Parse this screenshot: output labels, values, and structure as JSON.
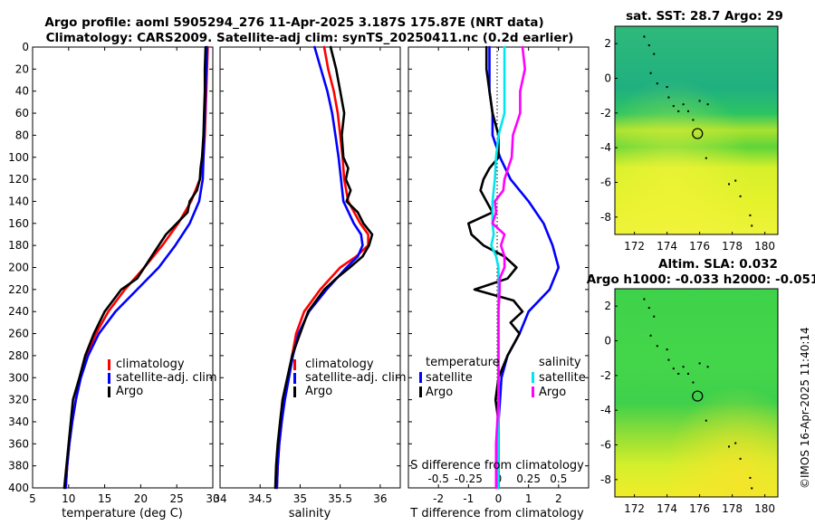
{
  "header": {
    "title_line1": "Argo profile: aoml 5905294_276 11-Apr-2025 3.187S 175.87E (NRT data)",
    "title_line2": "Climatology: CARS2009. Satellite-adj clim: synTS_20250411.nc (0.2d earlier)"
  },
  "colors": {
    "climatology": "#ff0000",
    "satellite": "#0000ff",
    "argo": "#000000",
    "satellite_s": "#00e5ee",
    "argo_s": "#ff00ff"
  },
  "chart_data": [
    {
      "id": "temperature",
      "type": "line",
      "xlabel": "temperature (deg C)",
      "ylabel": "",
      "xlim": [
        5,
        30
      ],
      "ylim": [
        400,
        0
      ],
      "xticks": [
        5,
        10,
        15,
        20,
        25,
        30
      ],
      "xtick_labels": [
        "5",
        "10",
        "15",
        "20",
        "25",
        "30"
      ],
      "yticks": [
        0,
        20,
        40,
        60,
        80,
        100,
        120,
        140,
        160,
        180,
        200,
        220,
        240,
        260,
        280,
        300,
        320,
        340,
        360,
        380,
        400
      ],
      "ytick_labels": [
        "0",
        "20",
        "40",
        "60",
        "80",
        "100",
        "120",
        "140",
        "160",
        "180",
        "200",
        "220",
        "240",
        "260",
        "280",
        "300",
        "320",
        "340",
        "360",
        "380",
        "400"
      ],
      "legend": [
        "climatology",
        "satellite-adj. clim",
        "Argo"
      ],
      "series": [
        {
          "name": "climatology",
          "color": "#ff0000",
          "depth": [
            0,
            20,
            40,
            60,
            80,
            100,
            120,
            140,
            160,
            180,
            200,
            220,
            240,
            260,
            280,
            300,
            320,
            340,
            360,
            380,
            400
          ],
          "values": [
            29.3,
            29.2,
            29.1,
            29.0,
            28.9,
            28.7,
            28.2,
            27.0,
            25.2,
            23.0,
            20.5,
            17.8,
            15.5,
            13.8,
            12.5,
            11.6,
            11.0,
            10.5,
            10.1,
            9.8,
            9.6
          ]
        },
        {
          "name": "satellite-adj. clim",
          "color": "#0000ff",
          "depth": [
            0,
            20,
            40,
            60,
            80,
            100,
            120,
            140,
            160,
            180,
            200,
            220,
            240,
            260,
            280,
            300,
            320,
            340,
            360,
            380,
            400
          ],
          "values": [
            29.2,
            29.1,
            29.0,
            28.9,
            28.8,
            28.7,
            28.6,
            28.1,
            26.8,
            24.8,
            22.5,
            19.5,
            16.5,
            14.2,
            12.7,
            11.7,
            11.0,
            10.5,
            10.1,
            9.8,
            9.6
          ]
        },
        {
          "name": "Argo",
          "color": "#000000",
          "depth": [
            0,
            20,
            40,
            60,
            80,
            100,
            110,
            120,
            130,
            140,
            150,
            160,
            170,
            180,
            190,
            200,
            210,
            220,
            240,
            260,
            280,
            300,
            320,
            340,
            360,
            380,
            400
          ],
          "values": [
            29.0,
            28.9,
            28.9,
            28.8,
            28.7,
            28.5,
            28.3,
            28.2,
            27.8,
            26.8,
            26.5,
            25.0,
            23.5,
            22.5,
            21.5,
            20.5,
            19.5,
            17.3,
            15.0,
            13.5,
            12.3,
            11.5,
            10.6,
            10.3,
            10.0,
            9.7,
            9.4
          ]
        }
      ]
    },
    {
      "id": "salinity",
      "type": "line",
      "xlabel": "salinity",
      "ylabel": "",
      "xlim": [
        34,
        36.25
      ],
      "ylim": [
        400,
        0
      ],
      "xticks": [
        34,
        34.5,
        35,
        35.5,
        36
      ],
      "xtick_labels": [
        "34",
        "34.5",
        "35",
        "35.5",
        "36"
      ],
      "legend": [
        "climatology",
        "satellite-adj. clim",
        "Argo"
      ],
      "series": [
        {
          "name": "climatology",
          "color": "#ff0000",
          "depth": [
            0,
            20,
            40,
            60,
            80,
            100,
            120,
            140,
            160,
            170,
            180,
            190,
            200,
            220,
            240,
            260,
            280,
            300,
            320,
            340,
            360,
            380,
            400
          ],
          "values": [
            35.3,
            35.35,
            35.42,
            35.47,
            35.5,
            35.53,
            35.55,
            35.6,
            35.75,
            35.85,
            35.85,
            35.7,
            35.5,
            35.25,
            35.05,
            34.95,
            34.9,
            34.85,
            34.8,
            34.77,
            34.74,
            34.72,
            34.71
          ]
        },
        {
          "name": "satellite-adj. clim",
          "color": "#0000ff",
          "depth": [
            0,
            20,
            40,
            60,
            80,
            100,
            120,
            140,
            160,
            170,
            180,
            190,
            200,
            220,
            240,
            260,
            280,
            300,
            320,
            340,
            360,
            380,
            400
          ],
          "values": [
            35.18,
            35.26,
            35.34,
            35.4,
            35.44,
            35.48,
            35.51,
            35.54,
            35.67,
            35.76,
            35.78,
            35.72,
            35.58,
            35.33,
            35.11,
            34.98,
            34.91,
            34.86,
            34.81,
            34.77,
            34.74,
            34.72,
            34.71
          ]
        },
        {
          "name": "Argo",
          "color": "#000000",
          "depth": [
            0,
            20,
            40,
            60,
            80,
            100,
            110,
            120,
            130,
            140,
            150,
            160,
            170,
            180,
            190,
            200,
            210,
            220,
            240,
            260,
            280,
            300,
            320,
            340,
            360,
            380,
            400
          ],
          "values": [
            35.38,
            35.45,
            35.5,
            35.55,
            35.52,
            35.54,
            35.6,
            35.57,
            35.63,
            35.58,
            35.72,
            35.79,
            35.9,
            35.86,
            35.78,
            35.62,
            35.45,
            35.3,
            35.1,
            35.0,
            34.9,
            34.84,
            34.78,
            34.75,
            34.72,
            34.7,
            34.69
          ]
        }
      ]
    },
    {
      "id": "difference",
      "type": "line",
      "xlabel": "T difference from climatology",
      "x2label": "S difference from climatology",
      "xlim": [
        -3,
        3
      ],
      "ylim": [
        400,
        0
      ],
      "xticks": [
        -2,
        -1,
        0,
        1,
        2
      ],
      "xtick_labels": [
        "-2",
        "-1",
        "0",
        "1",
        "2"
      ],
      "x2ticks": [
        -0.5,
        -0.25,
        0,
        0.25,
        0.5
      ],
      "x2tick_labels": [
        "-0.5",
        "-0.25",
        "0",
        "0.25",
        "0.5"
      ],
      "legend_t": [
        "temperature",
        "satellite",
        "Argo"
      ],
      "legend_s": [
        "salinity",
        "satellite",
        "Argo"
      ],
      "series": [
        {
          "name": "temperature satellite",
          "color": "#0000ff",
          "depth": [
            0,
            20,
            40,
            60,
            80,
            100,
            120,
            140,
            160,
            180,
            200,
            220,
            240,
            260,
            280,
            300,
            320,
            340,
            360,
            380,
            400
          ],
          "values": [
            -0.3,
            -0.3,
            -0.3,
            -0.2,
            -0.2,
            0.05,
            0.4,
            1.0,
            1.5,
            1.8,
            2.0,
            1.7,
            1.0,
            0.7,
            0.3,
            0.1,
            0.05,
            0.0,
            0.0,
            0.0,
            0.0
          ]
        },
        {
          "name": "temperature Argo",
          "color": "#000000",
          "depth": [
            0,
            20,
            40,
            60,
            80,
            100,
            110,
            120,
            130,
            140,
            150,
            160,
            170,
            180,
            190,
            200,
            210,
            220,
            230,
            240,
            250,
            260,
            270,
            280,
            300,
            320,
            340,
            360,
            380,
            400
          ],
          "values": [
            -0.4,
            -0.4,
            -0.3,
            -0.2,
            0.0,
            0.0,
            -0.3,
            -0.5,
            -0.6,
            -0.4,
            -0.2,
            -1.0,
            -0.9,
            -0.5,
            0.2,
            0.6,
            0.3,
            -0.8,
            0.5,
            0.8,
            0.4,
            0.7,
            0.5,
            0.3,
            0.0,
            -0.1,
            0.0,
            0.0,
            0.0,
            0.0
          ]
        },
        {
          "name": "salinity satellite",
          "color": "#00e5ee",
          "depth": [
            0,
            20,
            40,
            60,
            80,
            100,
            120,
            140,
            160,
            170,
            180,
            190,
            200,
            220,
            240,
            260,
            280,
            300,
            320,
            340,
            360,
            380,
            400
          ],
          "values": [
            0.05,
            0.05,
            0.05,
            0.05,
            0.0,
            -0.02,
            -0.03,
            -0.05,
            -0.05,
            -0.04,
            -0.06,
            -0.02,
            0.0,
            0.0,
            0.0,
            0.0,
            0.0,
            0.0,
            0.0,
            0.0,
            0.0,
            0.0,
            0.0
          ]
        },
        {
          "name": "salinity Argo",
          "color": "#ff00ff",
          "depth": [
            0,
            20,
            40,
            60,
            80,
            100,
            110,
            120,
            130,
            140,
            150,
            160,
            170,
            180,
            190,
            200,
            210,
            220,
            240,
            260,
            280,
            300,
            320,
            340,
            360,
            380,
            400
          ],
          "values": [
            0.2,
            0.22,
            0.18,
            0.18,
            0.12,
            0.11,
            0.08,
            0.05,
            0.04,
            -0.03,
            -0.02,
            -0.05,
            0.05,
            0.02,
            0.05,
            0.05,
            0.01,
            0.01,
            0.0,
            0.0,
            0.0,
            0.0,
            0.0,
            -0.01,
            -0.02,
            -0.02,
            -0.02
          ]
        }
      ]
    },
    {
      "id": "sst-map",
      "type": "heatmap",
      "title": "sat. SST: 28.7 Argo: 29",
      "xlim": [
        170.8,
        180.8
      ],
      "ylim": [
        -9,
        3
      ],
      "xticks": [
        172,
        174,
        176,
        178,
        180
      ],
      "xtick_labels": [
        "172",
        "174",
        "176",
        "178",
        "180"
      ],
      "yticks": [
        2,
        0,
        -2,
        -4,
        -6,
        -8
      ],
      "ytick_labels": [
        "2",
        "0",
        "-2",
        "-4",
        "-6",
        "-8"
      ],
      "float_position": [
        175.87,
        -3.187
      ]
    },
    {
      "id": "sla-map",
      "type": "heatmap",
      "title": "Altim. SLA: 0.032",
      "subtitle": "Argo h1000: -0.033 h2000: -0.051",
      "xlim": [
        170.8,
        180.8
      ],
      "ylim": [
        -9,
        3
      ],
      "xticks": [
        172,
        174,
        176,
        178,
        180
      ],
      "xtick_labels": [
        "172",
        "174",
        "176",
        "178",
        "180"
      ],
      "yticks": [
        2,
        0,
        -2,
        -4,
        -6,
        -8
      ],
      "ytick_labels": [
        "2",
        "0",
        "-2",
        "-4",
        "-6",
        "-8"
      ],
      "float_position": [
        175.87,
        -3.187
      ]
    }
  ],
  "footer": {
    "credit": "©IMOS 16-Apr-2025 11:40:14"
  }
}
